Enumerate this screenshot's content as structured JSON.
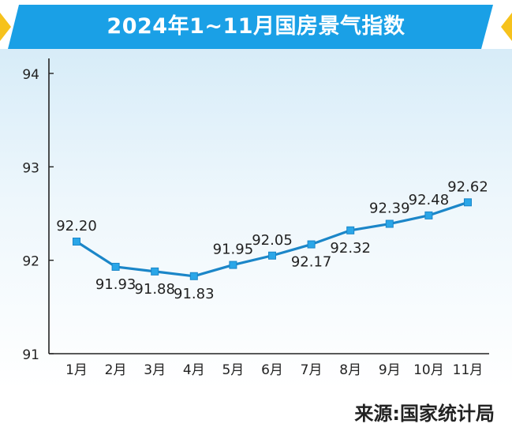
{
  "colors": {
    "banner": "#1aa0e6",
    "banner_accent": "#f6c21c",
    "line": "#1b86c8",
    "marker": "#2aa6e8",
    "text": "#222222"
  },
  "chart_data": {
    "type": "line",
    "title": "2024年1~11月国房景气指数",
    "categories": [
      "1月",
      "2月",
      "3月",
      "4月",
      "5月",
      "6月",
      "7月",
      "8月",
      "9月",
      "10月",
      "11月"
    ],
    "values": [
      92.2,
      91.93,
      91.88,
      91.83,
      91.95,
      92.05,
      92.17,
      92.32,
      92.39,
      92.48,
      92.62
    ],
    "data_labels": [
      "92.20",
      "91.93",
      "91.88",
      "91.83",
      "91.95",
      "92.05",
      "92.17",
      "92.32",
      "92.39",
      "92.48",
      "92.62"
    ],
    "label_placement": [
      "above",
      "below",
      "below",
      "below",
      "above",
      "above",
      "below",
      "below",
      "above",
      "above",
      "above"
    ],
    "yticks": [
      "91",
      "92",
      "93",
      "94"
    ],
    "ylim": [
      91,
      94
    ],
    "xlabel": "",
    "ylabel": "",
    "grid": false,
    "legend": "none"
  },
  "source": "来源:国家统计局"
}
